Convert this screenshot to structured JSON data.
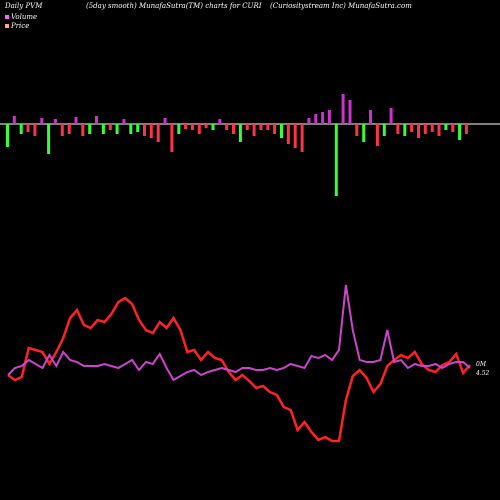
{
  "header": {
    "title_left": "Daily PVM",
    "title_mid1": "(5day smooth) MunafaSutra(TM) charts for CURI",
    "title_right": "(Curiositystream Inc) MunafaSutra.com"
  },
  "legend": [
    {
      "label": "Volume",
      "color": "#ff66ff"
    },
    {
      "label": "Price",
      "color": "#ffaa66"
    }
  ],
  "colors": {
    "background": "#000000",
    "up": "#33ff33",
    "down": "#ff3344",
    "volume_up": "#cc33cc",
    "price": "#ff2222",
    "pvm": "#cc44cc"
  },
  "chart_data": [
    {
      "type": "bar",
      "name": "PVM volume bars",
      "x": [
        1,
        2,
        3,
        4,
        5,
        6,
        7,
        8,
        9,
        10,
        11,
        12,
        13,
        14,
        15,
        16,
        17,
        18,
        19,
        20,
        21,
        22,
        23,
        24,
        25,
        26,
        27,
        28,
        29,
        30,
        31,
        32,
        33,
        34,
        35,
        36,
        37,
        38,
        39,
        40,
        41,
        42,
        43,
        44,
        45,
        46,
        47,
        48,
        49,
        50,
        51,
        52,
        53,
        54,
        55,
        56,
        57,
        58,
        59,
        60,
        61,
        62,
        63,
        64,
        65,
        66,
        67,
        68
      ],
      "values": [
        -23,
        8,
        -10,
        -8,
        -12,
        6,
        -30,
        5,
        -12,
        -10,
        7,
        -12,
        -10,
        8,
        -10,
        -6,
        -10,
        5,
        -10,
        -8,
        -12,
        -14,
        -18,
        6,
        -28,
        -10,
        -5,
        -6,
        -10,
        -4,
        -6,
        5,
        -6,
        -10,
        -18,
        -6,
        -12,
        -6,
        -6,
        -10,
        -14,
        -20,
        -24,
        -28,
        6,
        10,
        12,
        14,
        -72,
        30,
        24,
        -12,
        -18,
        14,
        -22,
        -12,
        16,
        -10,
        -12,
        -8,
        -14,
        -10,
        -8,
        -12,
        -6,
        -8,
        -16,
        -10
      ],
      "up": [
        true,
        true,
        true,
        false,
        false,
        true,
        true,
        true,
        false,
        false,
        true,
        false,
        true,
        true,
        true,
        false,
        true,
        true,
        true,
        true,
        false,
        false,
        false,
        true,
        false,
        true,
        false,
        false,
        false,
        false,
        true,
        true,
        false,
        false,
        true,
        false,
        false,
        false,
        false,
        false,
        true,
        false,
        false,
        false,
        true,
        true,
        true,
        true,
        true,
        true,
        true,
        false,
        true,
        true,
        false,
        true,
        true,
        false,
        true,
        false,
        false,
        false,
        false,
        false,
        true,
        false,
        true,
        false
      ]
    },
    {
      "type": "line",
      "name": "Price",
      "values": [
        375,
        380,
        377,
        348,
        350,
        352,
        364,
        352,
        338,
        318,
        310,
        325,
        328,
        320,
        322,
        314,
        302,
        298,
        304,
        320,
        330,
        333,
        322,
        328,
        318,
        330,
        352,
        350,
        360,
        352,
        358,
        360,
        372,
        380,
        375,
        381,
        388,
        386,
        392,
        395,
        407,
        410,
        430,
        422,
        432,
        440,
        437,
        441,
        441,
        400,
        376,
        370,
        378,
        392,
        384,
        366,
        360,
        355,
        358,
        352,
        364,
        370,
        372,
        365,
        362,
        354,
        373,
        365
      ],
      "end_label": "4.52"
    },
    {
      "type": "line",
      "name": "PVM",
      "values": [
        375,
        368,
        366,
        360,
        364,
        368,
        355,
        366,
        352,
        360,
        362,
        366,
        366,
        366,
        364,
        366,
        368,
        364,
        360,
        370,
        362,
        364,
        354,
        368,
        380,
        376,
        372,
        370,
        375,
        372,
        370,
        368,
        370,
        372,
        368,
        368,
        370,
        370,
        368,
        370,
        368,
        364,
        366,
        368,
        356,
        358,
        355,
        360,
        350,
        285,
        330,
        360,
        362,
        362,
        360,
        330,
        362,
        360,
        368,
        364,
        366,
        366,
        364,
        368,
        364,
        362,
        362,
        368
      ],
      "end_label": "0M"
    }
  ]
}
